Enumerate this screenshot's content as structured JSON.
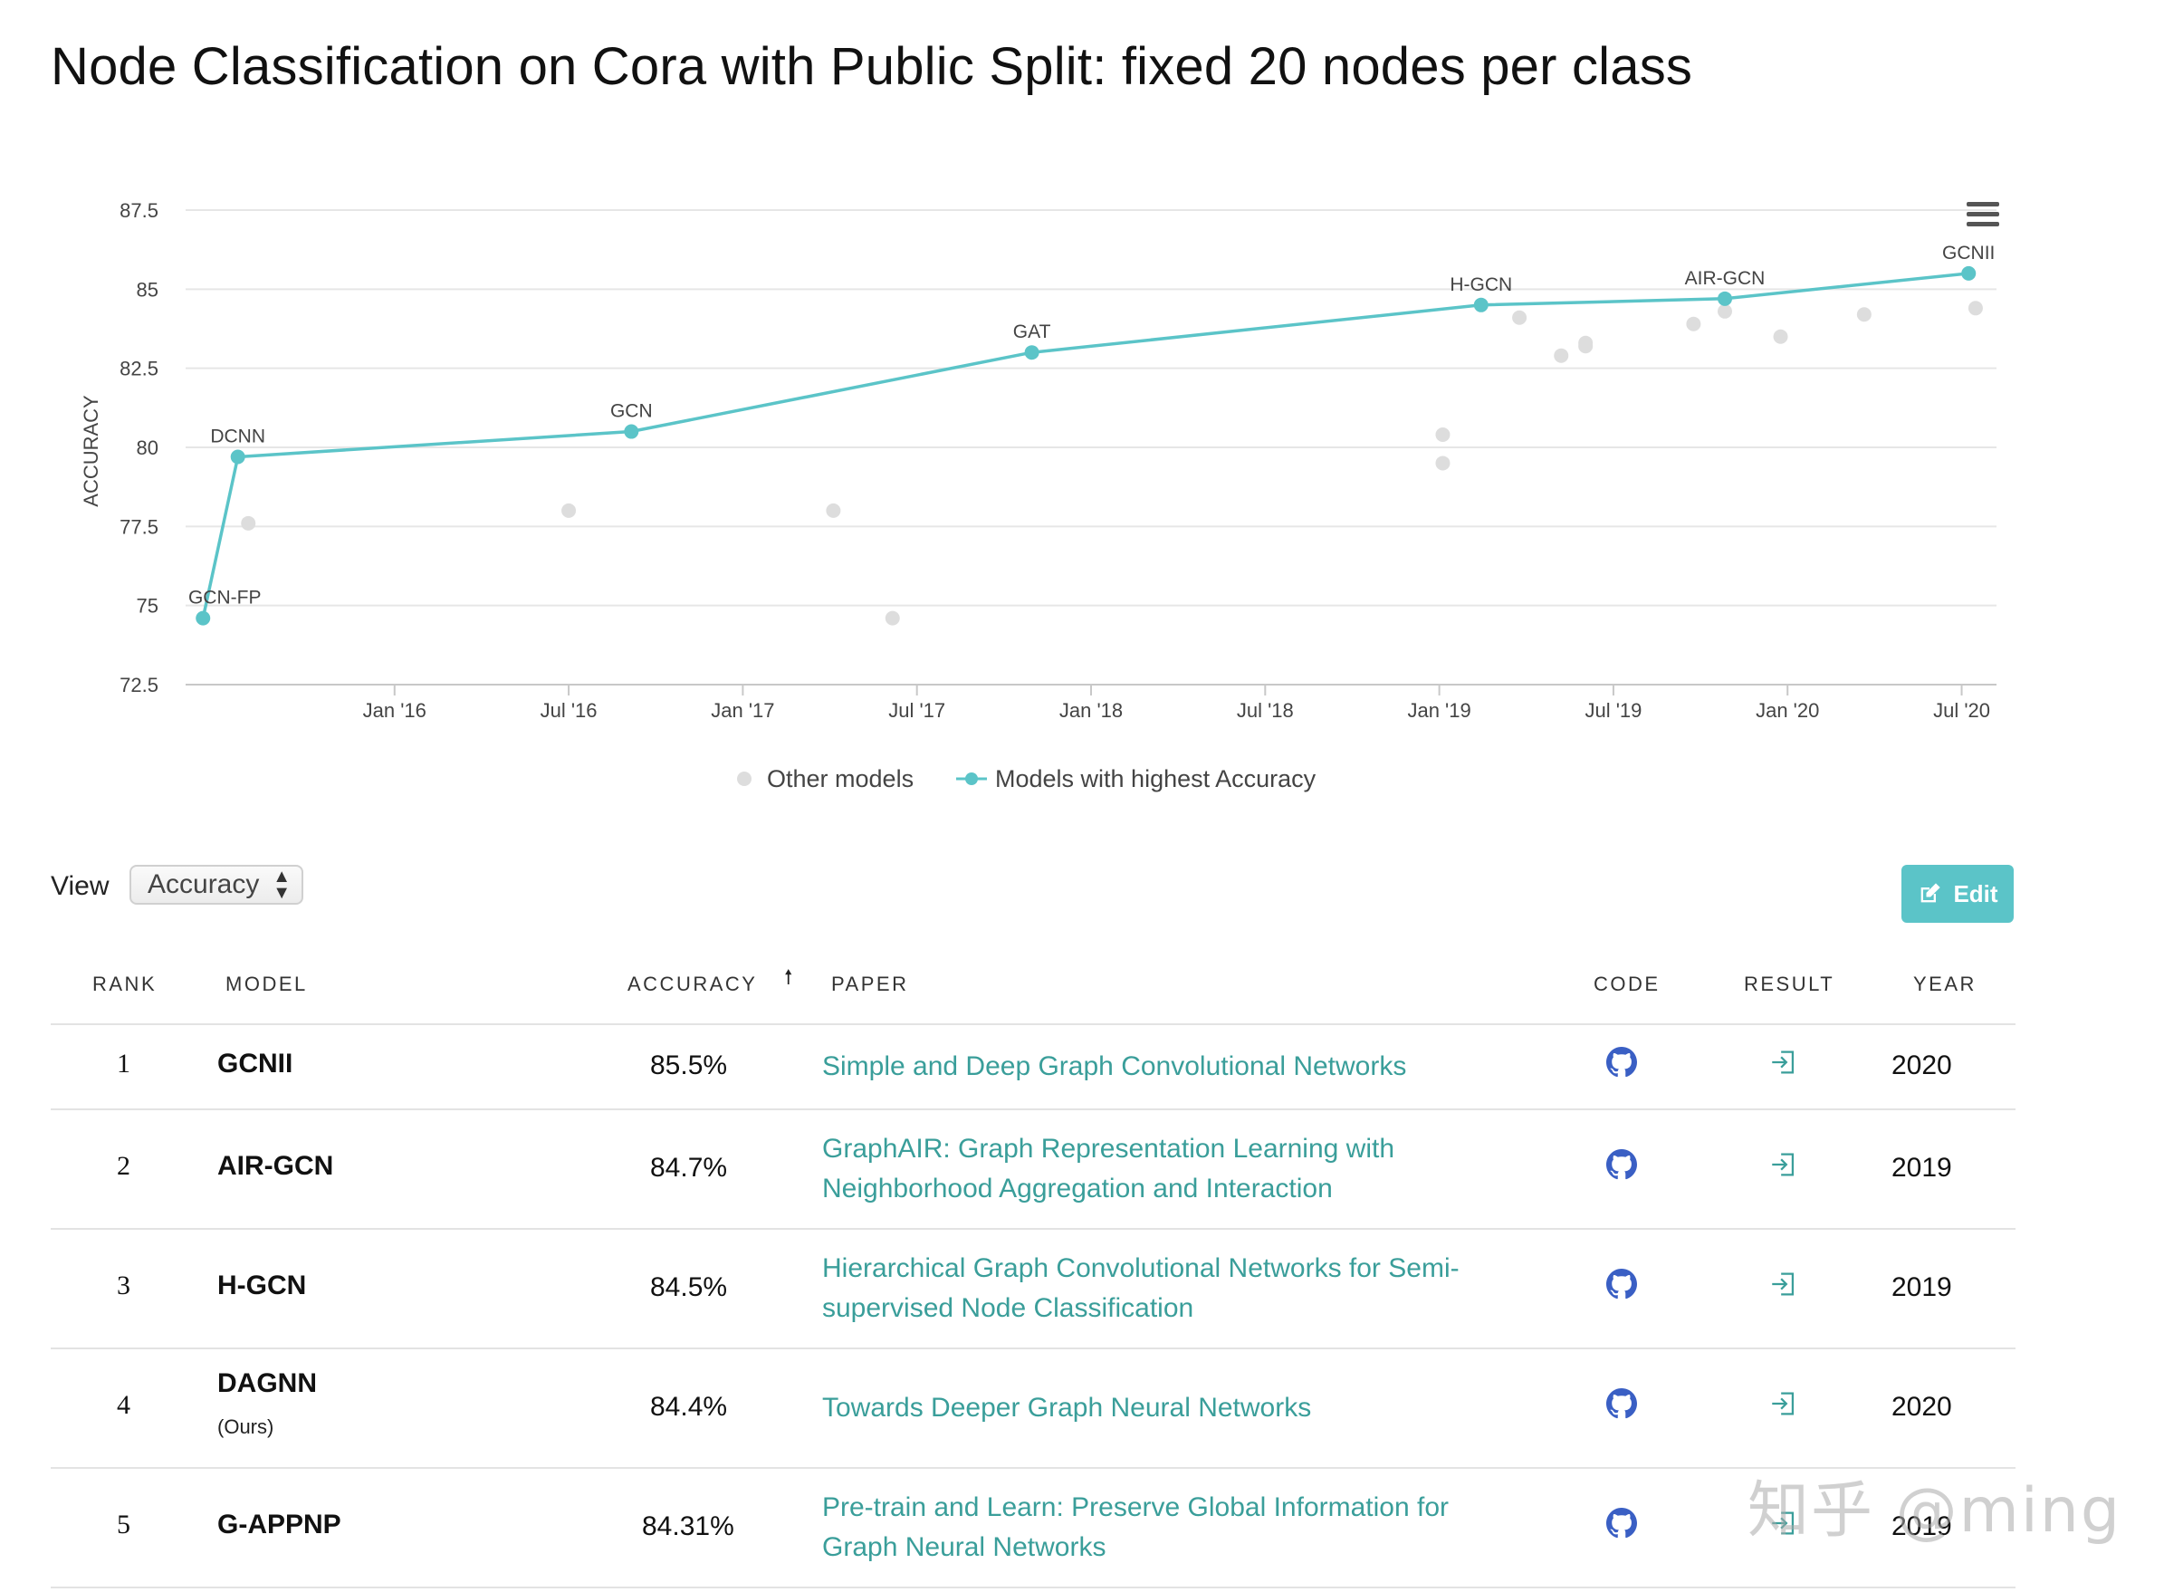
{
  "page": {
    "title": "Node Classification on Cora with Public Split: fixed 20 nodes per class"
  },
  "chart_data": {
    "type": "scatter",
    "title": "Node Classification on Cora with Public Split: fixed 20 nodes per class",
    "ylabel": "ACCURACY",
    "xlabel": "",
    "ylim": [
      72.5,
      87.5
    ],
    "xlim": [
      2015.4,
      2020.6
    ],
    "y_ticks": [
      "87.5",
      "85",
      "82.5",
      "80",
      "77.5",
      "75",
      "72.5"
    ],
    "y_tick_values": [
      87.5,
      85,
      82.5,
      80,
      77.5,
      75,
      72.5
    ],
    "x_ticks": [
      "Jan '16",
      "Jul '16",
      "Jan '17",
      "Jul '17",
      "Jan '18",
      "Jul '18",
      "Jan '19",
      "Jul '19",
      "Jan '20",
      "Jul '20"
    ],
    "x_tick_values": [
      2016.0,
      2016.5,
      2017.0,
      2017.5,
      2018.0,
      2018.5,
      2019.0,
      2019.5,
      2020.0,
      2020.5
    ],
    "legend": [
      "Other models",
      "Models with highest Accuracy"
    ],
    "series": [
      {
        "name": "Models with highest Accuracy",
        "color": "#5bc4c8",
        "points": [
          {
            "x": 2015.45,
            "y": 74.6,
            "label": "GCN-FP"
          },
          {
            "x": 2015.55,
            "y": 79.7,
            "label": "DCNN"
          },
          {
            "x": 2016.68,
            "y": 80.5,
            "label": "GCN"
          },
          {
            "x": 2017.83,
            "y": 83.0,
            "label": "GAT"
          },
          {
            "x": 2019.12,
            "y": 84.5,
            "label": "H-GCN"
          },
          {
            "x": 2019.82,
            "y": 84.7,
            "label": "AIR-GCN"
          },
          {
            "x": 2020.52,
            "y": 85.5,
            "label": "GCNII"
          }
        ]
      },
      {
        "name": "Other models",
        "color": "#dddddd",
        "points": [
          {
            "x": 2015.58,
            "y": 77.6
          },
          {
            "x": 2016.5,
            "y": 78.0
          },
          {
            "x": 2017.26,
            "y": 78.0
          },
          {
            "x": 2017.43,
            "y": 74.6
          },
          {
            "x": 2019.01,
            "y": 80.4
          },
          {
            "x": 2019.01,
            "y": 79.5
          },
          {
            "x": 2019.23,
            "y": 84.1
          },
          {
            "x": 2019.35,
            "y": 82.9
          },
          {
            "x": 2019.42,
            "y": 83.3
          },
          {
            "x": 2019.42,
            "y": 83.2
          },
          {
            "x": 2019.73,
            "y": 83.9
          },
          {
            "x": 2019.82,
            "y": 84.3
          },
          {
            "x": 2019.98,
            "y": 83.5
          },
          {
            "x": 2020.22,
            "y": 84.2
          },
          {
            "x": 2020.54,
            "y": 84.4
          }
        ]
      }
    ]
  },
  "controls": {
    "view_label": "View",
    "view_value": "Accuracy",
    "edit_label": "Edit"
  },
  "table": {
    "headers": {
      "rank": "RANK",
      "model": "MODEL",
      "accuracy": "ACCURACY",
      "paper": "PAPER",
      "code": "CODE",
      "result": "RESULT",
      "year": "YEAR"
    },
    "rows": [
      {
        "rank": "1",
        "model": "GCNII",
        "model_note": "",
        "accuracy": "85.5%",
        "paper": "Simple and Deep Graph Convolutional Networks",
        "year": "2020"
      },
      {
        "rank": "2",
        "model": "AIR-GCN",
        "model_note": "",
        "accuracy": "84.7%",
        "paper": "GraphAIR: Graph Representation Learning with Neighborhood Aggregation and Interaction",
        "year": "2019"
      },
      {
        "rank": "3",
        "model": "H-GCN",
        "model_note": "",
        "accuracy": "84.5%",
        "paper": "Hierarchical Graph Convolutional Networks for Semi-supervised Node Classification",
        "year": "2019"
      },
      {
        "rank": "4",
        "model": "DAGNN",
        "model_note": "(Ours)",
        "accuracy": "84.4%",
        "paper": "Towards Deeper Graph Neural Networks",
        "year": "2020"
      },
      {
        "rank": "5",
        "model": "G-APPNP",
        "model_note": "",
        "accuracy": "84.31%",
        "paper": "Pre-train and Learn: Preserve Global Information for Graph Neural Networks",
        "year": "2019"
      }
    ]
  },
  "watermark": "知乎 @ming"
}
